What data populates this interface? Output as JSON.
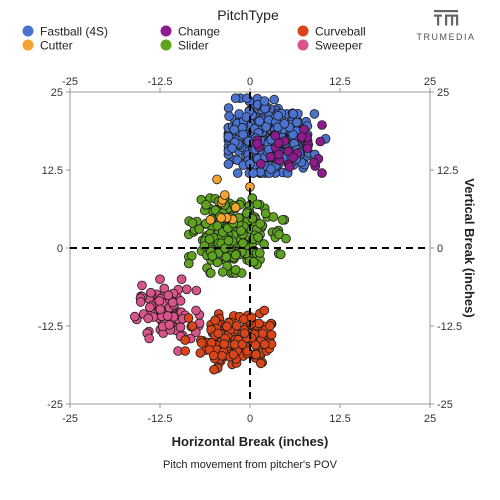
{
  "brand": {
    "name": "TRUMEDIA",
    "logo_icon": "tm-logo-icon"
  },
  "chart_data": {
    "type": "scatter",
    "title": "",
    "legend_title": "PitchType",
    "legend_position": "top",
    "xlabel": "Horizontal Break (inches)",
    "ylabel": "Vertical Break (inches)",
    "caption": "Pitch movement from pitcher's POV",
    "xlim": [
      -25,
      25
    ],
    "ylim": [
      -25,
      25
    ],
    "xticks": [
      -25,
      -12.5,
      0,
      12.5,
      25
    ],
    "yticks": [
      -25,
      -12.5,
      0,
      12.5,
      25
    ],
    "tick_labels": [
      "-25",
      "-12.5",
      "0",
      "12.5",
      "25"
    ],
    "grid": false,
    "reference_lines": [
      {
        "axis": "x",
        "value": 0,
        "style": "dashed"
      },
      {
        "axis": "y",
        "value": 0,
        "style": "dashed"
      }
    ],
    "series": [
      {
        "name": "Fastball (4S)",
        "color": "#4a72cf",
        "cluster": {
          "x_mean": 2.5,
          "y_mean": 17.5,
          "x_sd": 2.6,
          "y_sd": 2.3,
          "n": 520,
          "x_range": [
            -3,
            12
          ],
          "y_range": [
            12,
            24
          ]
        },
        "points": [
          [
            -2,
            24
          ],
          [
            -0.5,
            21
          ],
          [
            10.5,
            17.5
          ],
          [
            9,
            15
          ],
          [
            -2.5,
            16
          ],
          [
            0,
            13.5
          ]
        ]
      },
      {
        "name": "Change",
        "color": "#8e1b8e",
        "cluster": {
          "x_mean": 5.8,
          "y_mean": 15.5,
          "x_sd": 2.4,
          "y_sd": 2.0,
          "n": 22,
          "x_range": [
            1,
            10
          ],
          "y_range": [
            12,
            20
          ]
        },
        "points": [
          [
            7.5,
            19
          ],
          [
            6,
            14.5
          ],
          [
            4,
            15
          ],
          [
            8,
            16
          ],
          [
            1.5,
            13.5
          ],
          [
            7.2,
            17.8
          ],
          [
            5.5,
            13
          ],
          [
            3.5,
            18
          ]
        ]
      },
      {
        "name": "Curveball",
        "color": "#d94418",
        "cluster": {
          "x_mean": -2.0,
          "y_mean": -14.5,
          "x_sd": 2.4,
          "y_sd": 2.0,
          "n": 190,
          "x_range": [
            -9,
            3
          ],
          "y_range": [
            -20,
            -9
          ]
        },
        "points": [
          [
            -9,
            -16.5
          ],
          [
            -8,
            -12.5
          ],
          [
            1.5,
            -18.5
          ],
          [
            2,
            -10
          ],
          [
            -5,
            -19.5
          ]
        ]
      },
      {
        "name": "Cutter",
        "color": "#f3a32f",
        "cluster": {
          "x_mean": -2.5,
          "y_mean": 7.0,
          "x_sd": 1.5,
          "y_sd": 3.0,
          "n": 5,
          "x_range": [
            -6,
            0
          ],
          "y_range": [
            4,
            11
          ]
        },
        "points": [
          [
            0,
            9.8
          ],
          [
            -3.5,
            8.5
          ],
          [
            -5.5,
            4.5
          ],
          [
            -2,
            6.5
          ],
          [
            -4,
            4.8
          ]
        ]
      },
      {
        "name": "Slider",
        "color": "#5ea21f",
        "cluster": {
          "x_mean": -2.5,
          "y_mean": 2.0,
          "x_sd": 2.5,
          "y_sd": 2.6,
          "n": 290,
          "x_range": [
            -8.5,
            5
          ],
          "y_range": [
            -4,
            8
          ]
        },
        "points": [
          [
            -8,
            4
          ],
          [
            -8.5,
            -2.5
          ],
          [
            4.5,
            4.5
          ],
          [
            5,
            1.5
          ],
          [
            -2,
            -3.5
          ],
          [
            1,
            7
          ]
        ]
      },
      {
        "name": "Sweeper",
        "color": "#d9548a",
        "cluster": {
          "x_mean": -11.5,
          "y_mean": -10.5,
          "x_sd": 2.0,
          "y_sd": 1.9,
          "n": 95,
          "x_range": [
            -16,
            -7
          ],
          "y_range": [
            -16,
            -5
          ]
        },
        "points": [
          [
            -16,
            -11
          ],
          [
            -15,
            -6
          ],
          [
            -12.5,
            -5
          ],
          [
            -14,
            -14.5
          ],
          [
            -10,
            -16.5
          ],
          [
            -7.5,
            -10
          ]
        ]
      }
    ]
  }
}
